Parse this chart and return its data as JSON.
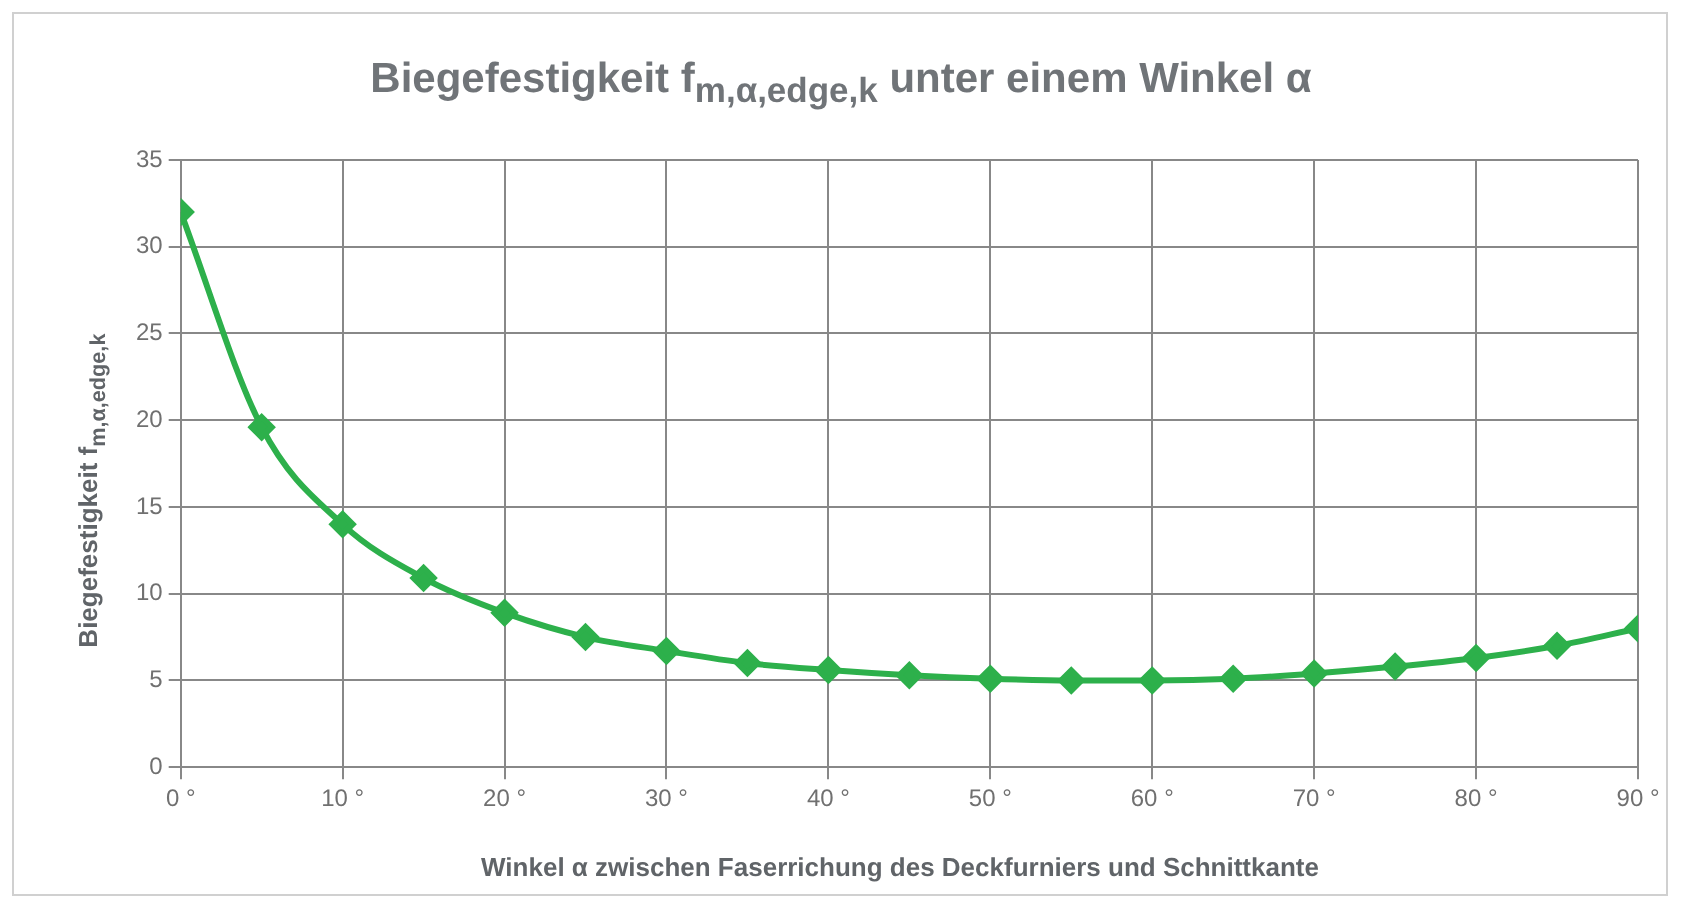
{
  "chart_data": {
    "type": "line",
    "title": "Biegefestigkeit f$_{m,α,edge,k}$ unter einem Winkel α",
    "xlabel": "Winkel α zwischen Faserrichung des Deckfurniers und Schnittkante",
    "ylabel": "Biegefestigkeit f$_{m,α,edge,k}$",
    "x": [
      0,
      5,
      10,
      15,
      20,
      25,
      30,
      35,
      40,
      45,
      50,
      55,
      60,
      65,
      70,
      75,
      80,
      85,
      90
    ],
    "series": [
      {
        "color": "#2db04b",
        "values": [
          32,
          19.6,
          14,
          10.9,
          8.9,
          7.5,
          6.7,
          6.0,
          5.6,
          5.3,
          5.1,
          5.0,
          5.0,
          5.1,
          5.4,
          5.8,
          6.3,
          7.0,
          8.0
        ]
      }
    ],
    "xlim": [
      0,
      90
    ],
    "xticks": [
      {
        "value": 0,
        "label": "0 °"
      },
      {
        "value": 10,
        "label": "10 °"
      },
      {
        "value": 20,
        "label": "20 °"
      },
      {
        "value": 30,
        "label": "30 °"
      },
      {
        "value": 40,
        "label": "40 °"
      },
      {
        "value": 50,
        "label": "50 °"
      },
      {
        "value": 60,
        "label": "60 °"
      },
      {
        "value": 70,
        "label": "70 °"
      },
      {
        "value": 80,
        "label": "80 °"
      },
      {
        "value": 90,
        "label": "90 °"
      }
    ],
    "ylim": [
      0,
      35
    ],
    "yticks": [
      0,
      5,
      10,
      15,
      20,
      25,
      30,
      35
    ],
    "grid": true,
    "marker": "diamond",
    "line_style": "solid"
  }
}
